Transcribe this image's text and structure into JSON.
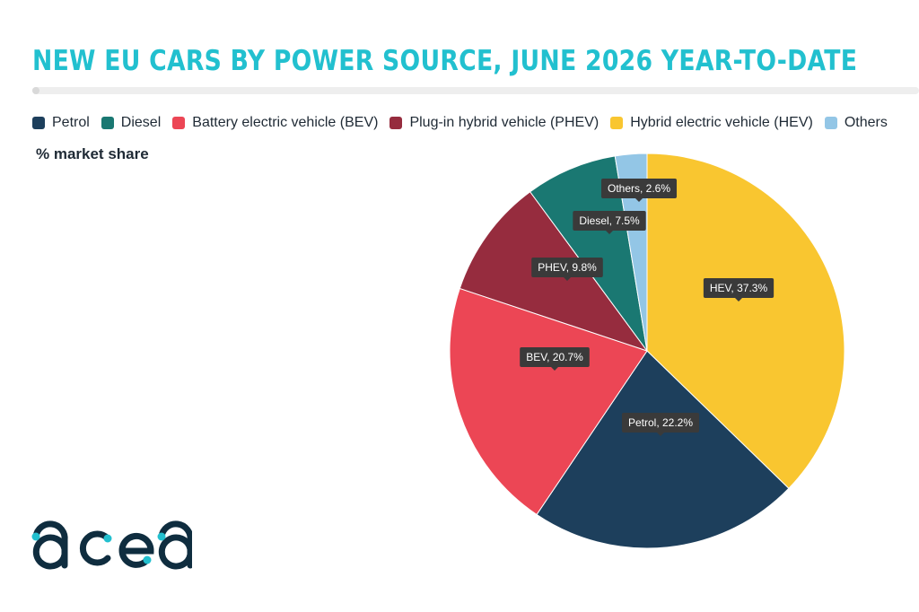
{
  "title": "NEW EU CARS BY POWER SOURCE, JUNE 2026 YEAR-TO-DATE",
  "subtitle": "% market share",
  "logo_text": "acea",
  "legend": [
    {
      "label": "Petrol",
      "color": "#1d3f5c"
    },
    {
      "label": "Diesel",
      "color": "#1a7872"
    },
    {
      "label": "Battery electric vehicle (BEV)",
      "color": "#ec4655"
    },
    {
      "label": "Plug-in hybrid vehicle (PHEV)",
      "color": "#962c3e"
    },
    {
      "label": "Hybrid electric vehicle (HEV)",
      "color": "#f9c630"
    },
    {
      "label": "Others",
      "color": "#93c6e6"
    }
  ],
  "chart_data": {
    "type": "pie",
    "title": "NEW EU CARS BY POWER SOURCE, JUNE 2026 YEAR-TO-DATE",
    "unit": "% market share",
    "start": "12 o'clock, clockwise",
    "slices": [
      {
        "name": "HEV",
        "legend": "Hybrid electric vehicle (HEV)",
        "value": 37.3,
        "label": "HEV, 37.3%",
        "color": "#f9c630"
      },
      {
        "name": "Petrol",
        "legend": "Petrol",
        "value": 22.2,
        "label": "Petrol, 22.2%",
        "color": "#1d3f5c"
      },
      {
        "name": "BEV",
        "legend": "Battery electric vehicle (BEV)",
        "value": 20.7,
        "label": "BEV, 20.7%",
        "color": "#ec4655"
      },
      {
        "name": "PHEV",
        "legend": "Plug-in hybrid vehicle (PHEV)",
        "value": 9.8,
        "label": "PHEV, 9.8%",
        "color": "#962c3e"
      },
      {
        "name": "Diesel",
        "legend": "Diesel",
        "value": 7.5,
        "label": "Diesel, 7.5%",
        "color": "#1a7872"
      },
      {
        "name": "Others",
        "legend": "Others",
        "value": 2.6,
        "label": "Others, 2.6%",
        "color": "#93c6e6"
      }
    ]
  }
}
